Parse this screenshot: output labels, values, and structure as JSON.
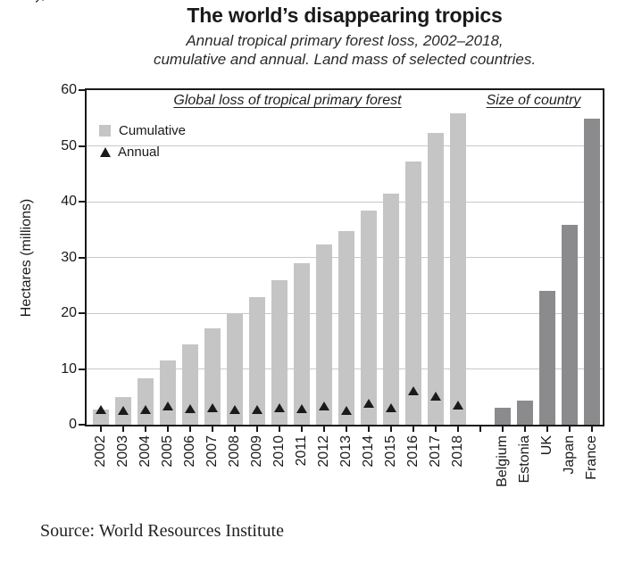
{
  "artifact": {
    "cropped_text": "y,"
  },
  "header": {
    "title": "The world’s disappearing tropics",
    "subtitle_line1": "Annual tropical primary forest loss, 2002–2018,",
    "subtitle_line2": "cumulative and annual. Land mass of selected countries."
  },
  "footer": {
    "source": "Source: World Resources Institute"
  },
  "chart_data": {
    "type": "bar",
    "title": "The world’s disappearing tropics",
    "ylabel": "Hectares (millions)",
    "ylim": [
      0,
      60
    ],
    "yticks": [
      0,
      10,
      20,
      30,
      40,
      50,
      60
    ],
    "grid": "horizontal gridlines at 10,20,30,40,50 behind bars",
    "sections": [
      {
        "label": "Global loss of tropical primary forest"
      },
      {
        "label": "Size of country"
      }
    ],
    "legend": {
      "position": "top-left inside plot",
      "items": [
        {
          "label": "Cumulative",
          "marker": "square",
          "color": "#c5c5c5"
        },
        {
          "label": "Annual",
          "marker": "triangle",
          "color": "#1a1a1a"
        }
      ]
    },
    "forest_loss": {
      "categories": [
        "2002",
        "2003",
        "2004",
        "2005",
        "2006",
        "2007",
        "2008",
        "2009",
        "2010",
        "2011",
        "2012",
        "2013",
        "2014",
        "2015",
        "2016",
        "2017",
        "2018"
      ],
      "series": [
        {
          "name": "Cumulative",
          "type": "bar",
          "color": "#c5c5c5",
          "values": [
            2.7,
            5.0,
            8.3,
            11.5,
            14.4,
            17.3,
            20.0,
            22.9,
            26.0,
            29.0,
            32.4,
            34.7,
            38.4,
            41.4,
            47.2,
            52.3,
            55.8
          ]
        },
        {
          "name": "Annual",
          "type": "triangle-marker",
          "color": "#1a1a1a",
          "values": [
            2.7,
            2.5,
            2.8,
            3.3,
            2.9,
            3.0,
            2.7,
            2.8,
            3.1,
            2.9,
            3.4,
            2.5,
            3.9,
            3.0,
            6.1,
            5.1,
            3.5
          ]
        }
      ]
    },
    "country_size": {
      "categories": [
        "Belgium",
        "Estonia",
        "UK",
        "Japan",
        "France"
      ],
      "series": [
        {
          "name": "Size of country",
          "type": "bar",
          "color": "#8b8b8d",
          "values": [
            3.0,
            4.4,
            24.0,
            35.8,
            54.9
          ]
        }
      ]
    }
  }
}
